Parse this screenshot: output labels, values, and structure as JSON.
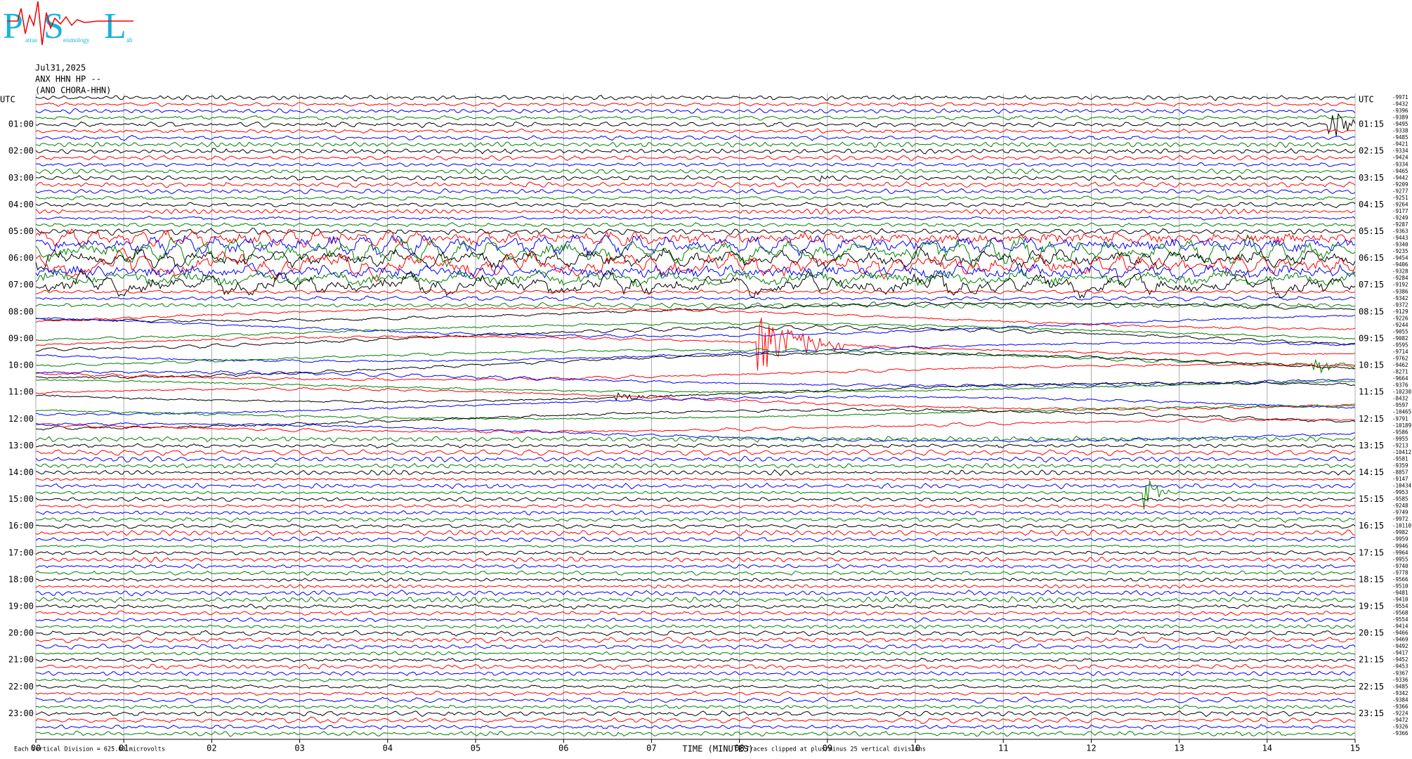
{
  "logo": [
    "P",
    "atras",
    "S",
    "eismology",
    "L",
    "ab"
  ],
  "chart_data": {
    "type": "helicorder",
    "title_lines": [
      "Jul31,2025",
      "ANX HHN HP --",
      "(ANO CHORA-HHN)"
    ],
    "left_labels": [
      "UTC",
      "01:00",
      "02:00",
      "03:00",
      "04:00",
      "05:00",
      "06:00",
      "07:00",
      "08:00",
      "09:00",
      "10:00",
      "11:00",
      "12:00",
      "13:00",
      "14:00",
      "15:00",
      "16:00",
      "17:00",
      "18:00",
      "19:00",
      "20:00",
      "21:00",
      "22:00",
      "23:00"
    ],
    "right_labels": [
      "UTC",
      "01:15",
      "02:15",
      "03:15",
      "04:15",
      "05:15",
      "06:15",
      "07:15",
      "08:15",
      "09:15",
      "10:15",
      "11:15",
      "12:15",
      "13:15",
      "14:15",
      "15:15",
      "16:15",
      "17:15",
      "18:15",
      "19:15",
      "20:15",
      "21:15",
      "22:15",
      "23:15"
    ],
    "trace_labels": [
      "-9971",
      "-9432",
      "-9396",
      "-9389",
      "-9495",
      "-9338",
      "-9485",
      "-9421",
      "-9334",
      "-9424",
      "-9334",
      "-9465",
      "-9442",
      "-9209",
      "-9277",
      "-9251",
      "-9264",
      "-9177",
      "-9249",
      "-9287",
      "-9363",
      "-9443",
      "-9340",
      "-9235",
      "-9454",
      "-9406",
      "-9328",
      "-9284",
      "-9192",
      "-9386",
      "-9342",
      "-9372",
      "-9129",
      "-9226",
      "-9244",
      "-9055",
      "-9082",
      "-9595",
      "-9714",
      "-9762",
      "-9462",
      "-8271",
      "-9664",
      "-9376",
      "-10230",
      "-8432",
      "-9597",
      "-10465",
      "-9791",
      "-10189",
      "-9586",
      "-9955",
      "-9213",
      "-10412",
      "-9581",
      "-9359",
      "-8857",
      "-9147",
      "-10434",
      "-9953",
      "-9585",
      "-9248",
      "-9749",
      "-9972",
      "-10110",
      "-9982",
      "-9959",
      "-9946",
      "-9964",
      "-9955",
      "-9740",
      "-9778",
      "-9566",
      "-9510",
      "-9481",
      "-9410",
      "-9554",
      "-9568",
      "-9554",
      "-9414",
      "-9466",
      "-9469",
      "-9492",
      "-9417",
      "-9452",
      "-9453",
      "-9367",
      "-9336",
      "-9485",
      "-9342",
      "-9384",
      "-9366",
      "-9224",
      "-9472",
      "-9326",
      "-9366"
    ],
    "trace_colors": [
      "#000000",
      "#ff0000",
      "#0000ff",
      "#008000"
    ],
    "xlabel": "TIME (MINUTES)",
    "xlim": [
      0,
      15
    ],
    "xticks": [
      {
        "value": 0,
        "label": "00"
      },
      {
        "value": 1,
        "label": "01"
      },
      {
        "value": 2,
        "label": "02"
      },
      {
        "value": 3,
        "label": "03"
      },
      {
        "value": 4,
        "label": "04"
      },
      {
        "value": 5,
        "label": "05"
      },
      {
        "value": 6,
        "label": "06"
      },
      {
        "value": 7,
        "label": "07"
      },
      {
        "value": 8,
        "label": "08"
      },
      {
        "value": 9,
        "label": "09"
      },
      10,
      11,
      12,
      13,
      14,
      15
    ],
    "scale_note": "Each Vertical Division =  625.00 microvolts",
    "clip_note": "Traces clipped at plus/minus 25 vertical divisions",
    "grid": true
  }
}
